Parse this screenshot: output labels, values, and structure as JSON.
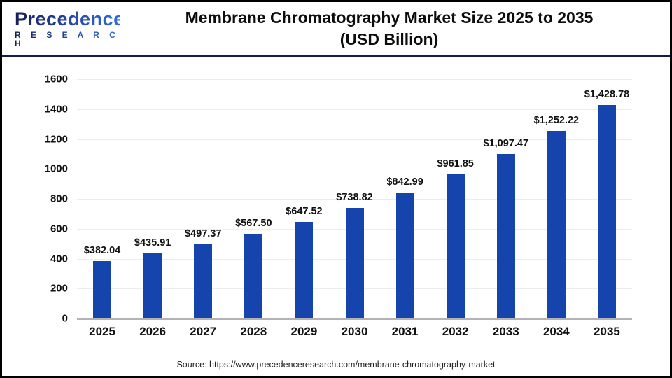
{
  "header": {
    "logo_line1": "Precedence",
    "logo_line2": "R E S E A R C H",
    "title_line1": "Membrane Chromatography Market Size 2025 to 2035",
    "title_line2": "(USD Billion)"
  },
  "chart_data": {
    "type": "bar",
    "title": "Membrane Chromatography Market Size 2025 to 2035 (USD Billion)",
    "categories": [
      "2025",
      "2026",
      "2027",
      "2028",
      "2029",
      "2030",
      "2031",
      "2032",
      "2033",
      "2034",
      "2035"
    ],
    "values": [
      382.04,
      435.91,
      497.37,
      567.5,
      647.52,
      738.82,
      842.99,
      961.85,
      1097.47,
      1252.22,
      1428.78
    ],
    "value_labels": [
      "$382.04",
      "$435.91",
      "$497.37",
      "$567.50",
      "$647.52",
      "$738.82",
      "$842.99",
      "$961.85",
      "$1,097.47",
      "$1,252.22",
      "$1,428.78"
    ],
    "xlabel": "",
    "ylabel": "",
    "ylim": [
      0,
      1600
    ],
    "yticks": [
      0,
      200,
      400,
      600,
      800,
      1000,
      1200,
      1400,
      1600
    ],
    "grid": true,
    "legend": "none",
    "bar_color": "#1444ac"
  },
  "colors": {
    "bar": "#1444ac",
    "header_rule": "#1a1a52",
    "grid": "#ededed",
    "baseline": "#b3b3b3",
    "logo_dark": "#181d58",
    "logo_blue": "#2f6fd6"
  },
  "footer": {
    "source": "Source: https://www.precedenceresearch.com/membrane-chromatography-market"
  }
}
